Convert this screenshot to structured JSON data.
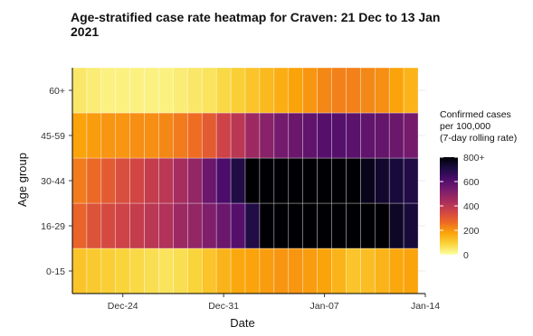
{
  "chart_data": {
    "type": "heatmap",
    "title": "Age-stratified case rate heatmap for Craven: 21 Dec to 13 Jan 2021",
    "title_lines": [
      "Age-stratified case rate heatmap for Craven: 21 Dec to 13 Jan",
      "2021"
    ],
    "xlabel": "Date",
    "ylabel": "Age group",
    "x_start": "2020-12-21",
    "x_end": "2021-01-13",
    "x_ticks": [
      {
        "date": "2020-12-24",
        "label": "Dec-24"
      },
      {
        "date": "2020-12-31",
        "label": "Dec-31"
      },
      {
        "date": "2021-01-07",
        "label": "Jan-07"
      },
      {
        "date": "2021-01-14",
        "label": "Jan-14"
      }
    ],
    "y_categories": [
      "0-15",
      "16-29",
      "30-44",
      "45-59",
      "60+"
    ],
    "values": {
      "60+": [
        50,
        40,
        30,
        30,
        30,
        30,
        30,
        40,
        50,
        60,
        80,
        100,
        120,
        140,
        160,
        180,
        200,
        220,
        230,
        230,
        220,
        210,
        180,
        150
      ],
      "45-59": [
        180,
        190,
        200,
        200,
        210,
        210,
        220,
        240,
        260,
        300,
        360,
        400,
        460,
        500,
        540,
        560,
        580,
        600,
        600,
        590,
        580,
        570,
        560,
        540
      ],
      "30-44": [
        240,
        270,
        300,
        330,
        350,
        380,
        400,
        440,
        480,
        560,
        620,
        700,
        800,
        800,
        800,
        800,
        800,
        800,
        800,
        800,
        770,
        740,
        720,
        700
      ],
      "16-29": [
        280,
        320,
        340,
        360,
        380,
        400,
        420,
        460,
        480,
        520,
        560,
        600,
        700,
        800,
        800,
        800,
        800,
        800,
        800,
        800,
        800,
        800,
        750,
        720
      ],
      "0-15": [
        120,
        110,
        100,
        90,
        80,
        70,
        60,
        70,
        90,
        120,
        150,
        170,
        180,
        190,
        200,
        200,
        190,
        180,
        150,
        120,
        130,
        150,
        170,
        180
      ]
    },
    "legend": {
      "title_lines": [
        "Confirmed cases",
        "per 100,000",
        "(7-day rolling rate)"
      ],
      "min": 0,
      "max": 800,
      "ticks": [
        {
          "value": 0,
          "label": "0"
        },
        {
          "value": 200,
          "label": "200"
        },
        {
          "value": 400,
          "label": "400"
        },
        {
          "value": 600,
          "label": "600"
        },
        {
          "value": 800,
          "label": "800+"
        }
      ]
    },
    "colors": [
      "#fcffa4",
      "#f9d53b",
      "#fba40a",
      "#ed6925",
      "#cf4446",
      "#a52c60",
      "#781c6d",
      "#4a0c6b",
      "#1b0c41",
      "#000004"
    ],
    "grid": true,
    "legend_position": "right"
  }
}
